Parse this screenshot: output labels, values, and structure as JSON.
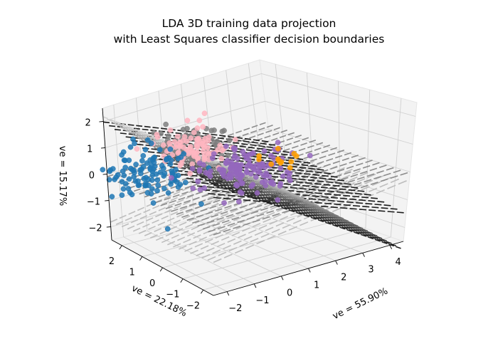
{
  "chart_data": {
    "type": "scatter",
    "title": [
      "LDA 3D training data projection",
      "with Least Squares classifier decision boundaries"
    ],
    "xlabel": "ve = 55.90%",
    "ylabel": "ve = 22.18%",
    "zlabel": "ve = 15.17%",
    "xlim": [
      -2.5,
      4.5
    ],
    "ylim": [
      -2.5,
      2.5
    ],
    "zlim": [
      -2.5,
      2.5
    ],
    "x_ticks": [
      "−2",
      "−1",
      "0",
      "1",
      "2",
      "3",
      "4"
    ],
    "y_ticks": [
      "−2",
      "−1",
      "0",
      "1",
      "2"
    ],
    "z_ticks": [
      "−2",
      "−1",
      "0",
      "1",
      "2"
    ],
    "grid": true,
    "view": {
      "elevation": 30,
      "azimuth": 45
    },
    "series": [
      {
        "color": "#7f7f7f",
        "center": [
          -1.0,
          0.2,
          1.6
        ],
        "spread": [
          0.6,
          0.5,
          0.25
        ],
        "count": 70
      },
      {
        "color": "#ffb6c1",
        "center": [
          -0.6,
          0.6,
          1.2
        ],
        "spread": [
          0.6,
          0.5,
          0.3
        ],
        "count": 90
      },
      {
        "color": "#1f77b4",
        "center": [
          -1.4,
          1.8,
          0.0
        ],
        "spread": [
          0.7,
          0.6,
          0.5
        ],
        "count": 110
      },
      {
        "color": "#9467bd",
        "center": [
          1.2,
          0.6,
          -0.1
        ],
        "spread": [
          0.8,
          0.5,
          0.3
        ],
        "count": 140
      },
      {
        "color": "#ff9f00",
        "center": [
          1.2,
          -1.2,
          0.9
        ],
        "spread": [
          0.6,
          0.4,
          0.3
        ],
        "count": 12
      }
    ],
    "surfaces": [
      "black-gray gradient",
      "black",
      "gray",
      "light gray"
    ]
  }
}
